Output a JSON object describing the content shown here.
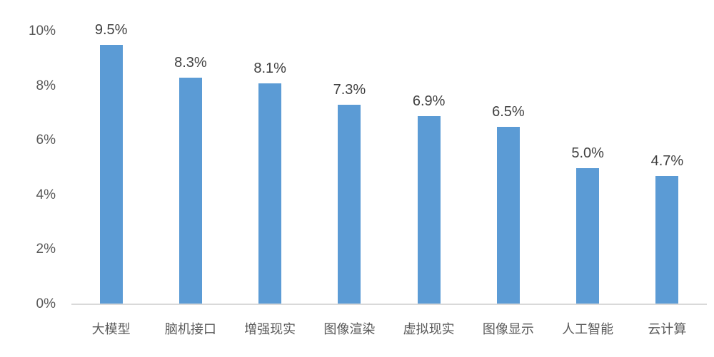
{
  "chart_data": {
    "type": "bar",
    "categories": [
      "大模型",
      "脑机接口",
      "增强现实",
      "图像渲染",
      "虚拟现实",
      "图像显示",
      "人工智能",
      "云计算"
    ],
    "values": [
      9.5,
      8.3,
      8.1,
      7.3,
      6.9,
      6.5,
      5.0,
      4.7
    ],
    "data_labels": [
      "9.5%",
      "8.3%",
      "8.1%",
      "7.3%",
      "6.9%",
      "6.5%",
      "5.0%",
      "4.7%"
    ],
    "title": "",
    "xlabel": "",
    "ylabel": "",
    "ylim": [
      0,
      10
    ],
    "yticks": [
      0,
      2,
      4,
      6,
      8,
      10
    ],
    "ytick_labels": [
      "0%",
      "2%",
      "4%",
      "6%",
      "8%",
      "10%"
    ],
    "grid": false,
    "legend": false,
    "colors": {
      "bar": "#5B9BD5",
      "value_label": "#404040",
      "tick_label": "#595959",
      "axis_line": "#D9D9D9",
      "background": "#FFFFFF"
    }
  }
}
